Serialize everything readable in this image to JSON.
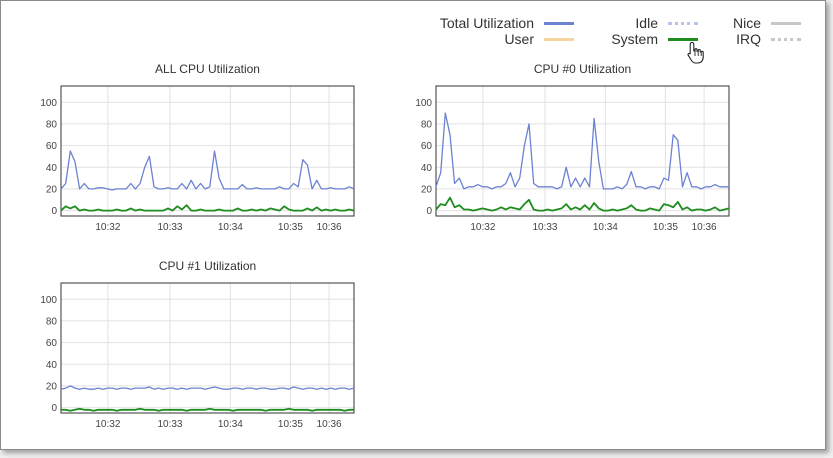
{
  "legend": {
    "items": [
      {
        "label": "Total Utilization",
        "color": "#6b82d2",
        "style": "solid"
      },
      {
        "label": "User",
        "color": "#f5d4a0",
        "style": "solid"
      },
      {
        "label": "Idle",
        "color": "#b7c3e8",
        "style": "dotted"
      },
      {
        "label": "System",
        "color": "#1e8c1e",
        "style": "solid"
      },
      {
        "label": "Nice",
        "color": "#c8c8c8",
        "style": "solid"
      },
      {
        "label": "IRQ",
        "color": "#c8c8c8",
        "style": "dotted"
      }
    ]
  },
  "chart_data": [
    {
      "type": "line",
      "title": "ALL CPU Utilization",
      "x_ticks": [
        "10:32",
        "10:33",
        "10:34",
        "10:35",
        "10:36"
      ],
      "y_ticks": [
        0,
        20,
        40,
        60,
        80,
        100
      ],
      "ylim": [
        -5,
        115
      ],
      "grid": true,
      "series": [
        {
          "name": "Total Utilization",
          "values": [
            20,
            25,
            55,
            45,
            20,
            25,
            20,
            20,
            21,
            21,
            20,
            19,
            20,
            20,
            20,
            25,
            20,
            25,
            40,
            50,
            22,
            20,
            20,
            21,
            20,
            20,
            25,
            20,
            28,
            20,
            25,
            20,
            22,
            55,
            30,
            20,
            20,
            20,
            20,
            24,
            20,
            20,
            21,
            20,
            20,
            20,
            20,
            22,
            20,
            20,
            25,
            22,
            47,
            42,
            20,
            28,
            20,
            20,
            21,
            20,
            20,
            20,
            22,
            20
          ]
        },
        {
          "name": "System",
          "values": [
            0,
            4,
            2,
            4,
            0,
            1,
            0,
            0,
            1,
            0,
            0,
            0,
            1,
            0,
            0,
            2,
            0,
            1,
            0,
            0,
            0,
            0,
            0,
            2,
            0,
            4,
            1,
            5,
            0,
            0,
            1,
            0,
            0,
            0,
            1,
            0,
            0,
            0,
            2,
            0,
            0,
            1,
            0,
            1,
            0,
            2,
            1,
            0,
            4,
            1,
            0,
            0,
            0,
            2,
            0,
            3,
            0,
            1,
            0,
            1,
            0,
            0,
            1,
            0
          ]
        }
      ]
    },
    {
      "type": "line",
      "title": "CPU #0 Utilization",
      "x_ticks": [
        "10:32",
        "10:33",
        "10:34",
        "10:35",
        "10:36"
      ],
      "y_ticks": [
        0,
        20,
        40,
        60,
        80,
        100
      ],
      "ylim": [
        -5,
        115
      ],
      "grid": true,
      "series": [
        {
          "name": "Total Utilization",
          "values": [
            22,
            35,
            90,
            70,
            25,
            30,
            20,
            22,
            22,
            24,
            22,
            22,
            20,
            22,
            22,
            25,
            35,
            22,
            30,
            60,
            80,
            25,
            22,
            22,
            22,
            22,
            20,
            22,
            40,
            22,
            30,
            22,
            30,
            22,
            85,
            45,
            20,
            20,
            20,
            22,
            20,
            24,
            36,
            22,
            22,
            20,
            22,
            22,
            20,
            30,
            28,
            70,
            65,
            22,
            35,
            22,
            22,
            20,
            22,
            22,
            24,
            22,
            22,
            22
          ]
        },
        {
          "name": "System",
          "values": [
            1,
            6,
            5,
            12,
            3,
            5,
            1,
            1,
            0,
            1,
            2,
            1,
            0,
            1,
            3,
            1,
            3,
            2,
            1,
            6,
            10,
            1,
            0,
            0,
            1,
            0,
            1,
            2,
            6,
            1,
            3,
            1,
            5,
            1,
            7,
            2,
            0,
            0,
            1,
            0,
            1,
            2,
            5,
            1,
            0,
            0,
            2,
            1,
            0,
            6,
            5,
            3,
            8,
            1,
            3,
            0,
            1,
            1,
            0,
            1,
            3,
            0,
            1,
            2
          ]
        }
      ]
    },
    {
      "type": "line",
      "title": "CPU #1 Utilization",
      "x_ticks": [
        "10:32",
        "10:33",
        "10:34",
        "10:35",
        "10:36"
      ],
      "y_ticks": [
        0,
        20,
        40,
        60,
        80,
        100
      ],
      "ylim": [
        -5,
        115
      ],
      "grid": true,
      "series": [
        {
          "name": "Total Utilization",
          "values": [
            17,
            18,
            20,
            18,
            17,
            18,
            17,
            17,
            18,
            17,
            18,
            18,
            17,
            18,
            18,
            17,
            18,
            18,
            18,
            19,
            17,
            18,
            17,
            18,
            18,
            17,
            18,
            17,
            18,
            18,
            18,
            17,
            18,
            19,
            18,
            17,
            17,
            18,
            18,
            17,
            18,
            18,
            17,
            18,
            18,
            17,
            17,
            18,
            18,
            17,
            19,
            18,
            17,
            18,
            18,
            17,
            18,
            17,
            18,
            17,
            18,
            18,
            17,
            18
          ]
        },
        {
          "name": "System",
          "values": [
            -2,
            -2,
            -3,
            -2,
            -1,
            -2,
            -2,
            -3,
            -2,
            -2,
            -2,
            -2,
            -3,
            -2,
            -2,
            -2,
            -2,
            -1,
            -2,
            -2,
            -2,
            -3,
            -2,
            -2,
            -2,
            -2,
            -2,
            -3,
            -2,
            -2,
            -2,
            -2,
            -1,
            -2,
            -2,
            -2,
            -2,
            -3,
            -2,
            -2,
            -2,
            -2,
            -2,
            -2,
            -3,
            -2,
            -2,
            -2,
            -2,
            -1,
            -2,
            -2,
            -2,
            -2,
            -3,
            -2,
            -2,
            -2,
            -2,
            -2,
            -2,
            -3,
            -2,
            -2
          ]
        }
      ]
    }
  ]
}
